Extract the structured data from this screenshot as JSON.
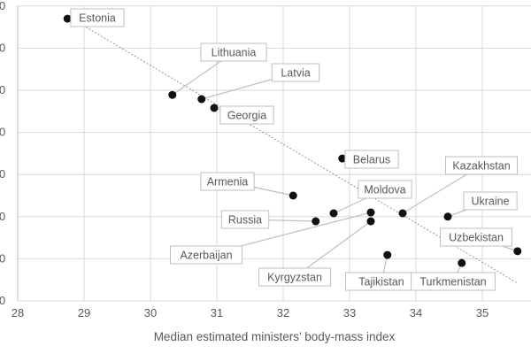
{
  "chart_data": {
    "type": "scatter",
    "title": "",
    "xlabel": "Median estimated ministers’ body-mass index",
    "ylabel": "",
    "xlim": [
      28,
      35.7
    ],
    "ylim": [
      0,
      7
    ],
    "x_ticks": [
      "28",
      "29",
      "30",
      "31",
      "32",
      "33",
      "34",
      "35"
    ],
    "y_tick_labels_visible": [
      "0",
      "0",
      "0",
      "0",
      "0",
      "0",
      "0",
      "0"
    ],
    "grid": true,
    "points": [
      {
        "label": "Estonia",
        "x": 28.75,
        "y": 6.7
      },
      {
        "label": "Lithuania",
        "x": 30.33,
        "y": 4.89
      },
      {
        "label": "Latvia",
        "x": 30.77,
        "y": 4.79
      },
      {
        "label": "Georgia",
        "x": 30.96,
        "y": 4.58
      },
      {
        "label": "Belarus",
        "x": 32.89,
        "y": 3.38
      },
      {
        "label": "Armenia",
        "x": 32.15,
        "y": 2.5
      },
      {
        "label": "Moldova",
        "x": 32.76,
        "y": 2.08
      },
      {
        "label": "Russia",
        "x": 32.49,
        "y": 1.89
      },
      {
        "label": "Azerbaijan",
        "x": 33.32,
        "y": 2.1
      },
      {
        "label": "Kyrgyzstan",
        "x": 33.32,
        "y": 1.89
      },
      {
        "label": "Kazakhstan",
        "x": 33.8,
        "y": 2.08
      },
      {
        "label": "Ukraine",
        "x": 34.48,
        "y": 2.0
      },
      {
        "label": "Uzbekistan",
        "x": 35.53,
        "y": 1.18
      },
      {
        "label": "Tajikistan",
        "x": 33.57,
        "y": 1.09
      },
      {
        "label": "Turkmenistan",
        "x": 34.69,
        "y": 0.9
      }
    ],
    "trendline": {
      "x": [
        28.75,
        35.53
      ],
      "y": [
        6.76,
        0.42
      ]
    },
    "colors": {
      "point": "#111111",
      "grid": "#d9d9d9",
      "text": "#595959",
      "trend": "#7f7f7f"
    }
  }
}
